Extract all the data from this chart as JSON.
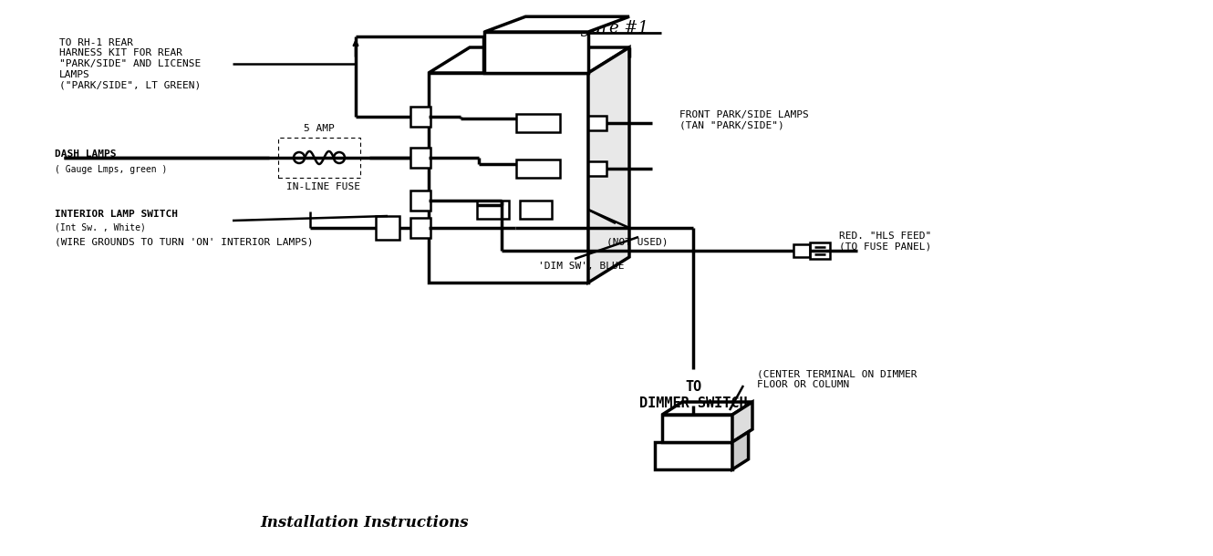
{
  "title": "Figure #1",
  "subtitle": "Installation Instructions",
  "bg_color": "#ffffff",
  "line_color": "#000000",
  "title_fontsize": 13,
  "subtitle_fontsize": 12,
  "label_fontsize": 8,
  "small_fontsize": 7,
  "labels": {
    "rear_harness": "TO RH-1 REAR\nHARNESS KIT FOR REAR\n\"PARK/SIDE\" AND LICENSE\nLAMPS\n(\"PARK/SIDE\", LT GREEN)",
    "five_amp": "5 AMP",
    "dash_lamps": "DASH LAMPS",
    "dash_lamps_sub": "( Gauge Lmps, green )",
    "inline_fuse": "IN-LINE FUSE",
    "interior_switch": "INTERIOR LAMP SWITCH",
    "interior_switch_sub": "(Int Sw. , White)",
    "wire_grounds": "(WIRE GROUNDS TO TURN 'ON' INTERIOR LAMPS)",
    "front_park": "FRONT PARK/SIDE LAMPS\n(TAN \"PARK/SIDE\")",
    "not_used": "(NOT USED)",
    "red_hls": "RED. \"HLS FEED\"\n(TO FUSE PANEL)",
    "dim_sw": "'DIM SW', BLUE",
    "dimmer_to": "TO",
    "dimmer_switch": "DIMMER SWITCH",
    "center_terminal": "(CENTER TERMINAL ON DIMMER\nFLOOR OR COLUMN"
  }
}
